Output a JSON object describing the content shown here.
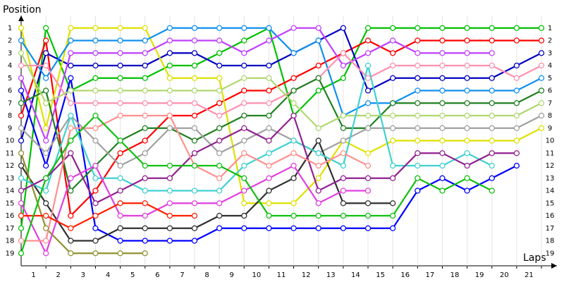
{
  "chart_data": {
    "type": "line",
    "y_label": "Position",
    "x_label": "Laps",
    "x": [
      0,
      1,
      2,
      3,
      4,
      5,
      6,
      7,
      8,
      9,
      10,
      11,
      12,
      13,
      14,
      15,
      16,
      17,
      18,
      19,
      20,
      21
    ],
    "xlim": [
      0,
      21
    ],
    "xticks": [
      1,
      2,
      3,
      4,
      5,
      6,
      7,
      8,
      9,
      10,
      11,
      12,
      13,
      14,
      15,
      16,
      17,
      18,
      19,
      20,
      21
    ],
    "ylim": [
      20,
      0
    ],
    "yticks": [
      1,
      2,
      3,
      4,
      5,
      6,
      7,
      8,
      9,
      10,
      11,
      12,
      13,
      14,
      15,
      16,
      17,
      18,
      19
    ],
    "grid": true,
    "series": [
      {
        "color": "#00c000",
        "values": [
          17,
          1,
          6,
          5,
          5,
          5,
          4,
          4,
          3,
          2,
          1,
          8,
          6,
          5,
          1,
          1,
          1,
          1,
          1,
          1,
          1,
          1
        ]
      },
      {
        "color": "#ff0000",
        "values": [
          8,
          2,
          16,
          14,
          11,
          10,
          8,
          8,
          7,
          6,
          6,
          5,
          4,
          3,
          2,
          3,
          2,
          2,
          2,
          2,
          2,
          2
        ]
      },
      {
        "color": "#0000c0",
        "values": [
          10,
          3,
          4,
          4,
          4,
          4,
          3,
          3,
          4,
          4,
          4,
          3,
          2,
          1,
          6,
          5,
          5,
          5,
          5,
          5,
          4,
          3
        ]
      },
      {
        "color": "#0000ff",
        "values": [
          6,
          12,
          5,
          17,
          18,
          18,
          18,
          18,
          17,
          17,
          17,
          17,
          17,
          17,
          17,
          17,
          14,
          13,
          14,
          13,
          12,
          null
        ]
      },
      {
        "color": "#e0e000",
        "values": [
          1,
          9,
          1,
          1,
          1,
          1,
          5,
          5,
          5,
          15,
          15,
          15,
          13,
          10,
          11,
          10,
          10,
          10,
          10,
          10,
          10,
          9
        ]
      },
      {
        "color": "#1090f0",
        "values": [
          2,
          5,
          2,
          2,
          2,
          2,
          1,
          1,
          1,
          1,
          1,
          3,
          2,
          8,
          7,
          7,
          6,
          6,
          6,
          6,
          6,
          5
        ]
      },
      {
        "color": "#c040ff",
        "values": [
          5,
          10,
          3,
          3,
          3,
          3,
          2,
          2,
          2,
          3,
          2,
          1,
          1,
          4,
          3,
          2,
          3,
          3,
          3,
          3,
          null,
          null
        ]
      },
      {
        "color": "#ff90b0",
        "values": [
          4,
          4,
          7,
          7,
          7,
          7,
          7,
          7,
          8,
          7,
          7,
          6,
          5,
          3,
          5,
          4,
          4,
          4,
          4,
          4,
          5,
          4
        ]
      },
      {
        "color": "#208020",
        "values": [
          7,
          6,
          14,
          12,
          10,
          9,
          9,
          10,
          9,
          8,
          8,
          6,
          5,
          9,
          9,
          7,
          7,
          7,
          7,
          7,
          7,
          6
        ]
      },
      {
        "color": "#b0d870",
        "values": [
          3,
          7,
          6,
          6,
          6,
          6,
          6,
          6,
          6,
          5,
          5,
          7,
          9,
          8,
          8,
          8,
          8,
          8,
          8,
          8,
          8,
          7
        ]
      },
      {
        "color": "#a0a0a0",
        "values": [
          9,
          11,
          8,
          10,
          12,
          11,
          9,
          9,
          11,
          10,
          9,
          10,
          11,
          10,
          9,
          9,
          9,
          9,
          9,
          9,
          9,
          8
        ]
      },
      {
        "color": "#303030",
        "values": [
          12,
          15,
          18,
          18,
          17,
          17,
          17,
          17,
          16,
          16,
          14,
          13,
          10,
          15,
          15,
          15,
          null,
          null,
          null,
          null,
          null,
          null
        ]
      },
      {
        "color": "#909030",
        "values": [
          11,
          17,
          19,
          19,
          19,
          19,
          null,
          null,
          null,
          null,
          null,
          null,
          null,
          null,
          null,
          null,
          null,
          null,
          null,
          null,
          null,
          null
        ]
      },
      {
        "color": "#40d0d0",
        "values": [
          13,
          14,
          8,
          13,
          13,
          14,
          14,
          14,
          14,
          12,
          11,
          10,
          11,
          12,
          4,
          12,
          12,
          12,
          11,
          12,
          null,
          null
        ]
      },
      {
        "color": "#902090",
        "values": [
          14,
          13,
          11,
          15,
          14,
          13,
          13,
          11,
          10,
          9,
          10,
          8,
          14,
          13,
          13,
          13,
          11,
          11,
          12,
          11,
          11,
          null
        ]
      },
      {
        "color": "#e040e0",
        "values": [
          15,
          19,
          13,
          12,
          16,
          16,
          15,
          15,
          15,
          14,
          13,
          12,
          15,
          14,
          14,
          null,
          null,
          null,
          null,
          null,
          null,
          null
        ]
      },
      {
        "color": "#ff9090",
        "values": [
          18,
          18,
          9,
          9,
          8,
          8,
          8,
          12,
          13,
          11,
          12,
          11,
          12,
          11,
          12,
          null,
          null,
          null,
          null,
          null,
          null,
          null
        ]
      },
      {
        "color": "#ff2000",
        "values": [
          16,
          16,
          17,
          16,
          15,
          15,
          16,
          16,
          null,
          null,
          null,
          null,
          null,
          null,
          null,
          null,
          null,
          null,
          null,
          null,
          null,
          null
        ]
      },
      {
        "color": "#10c010",
        "values": [
          19,
          13,
          10,
          8,
          10,
          12,
          12,
          12,
          12,
          13,
          16,
          16,
          16,
          16,
          16,
          16,
          13,
          14,
          13,
          14,
          null,
          null
        ]
      }
    ]
  }
}
